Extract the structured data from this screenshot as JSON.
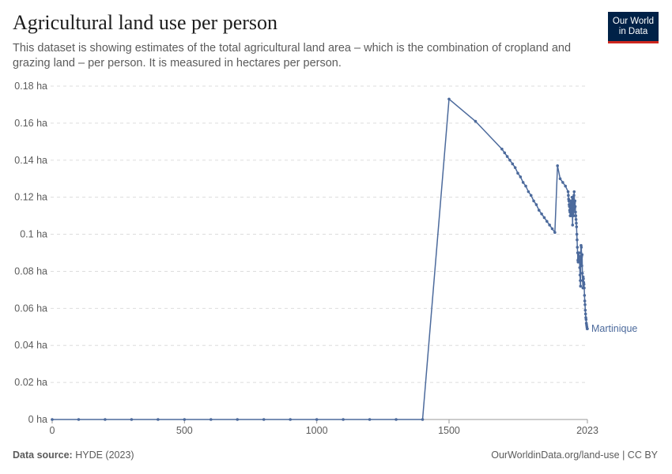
{
  "chart_data": {
    "type": "line",
    "title": "Agricultural land use per person",
    "subtitle": "This dataset is showing estimates of the total agricultural land area – which is the combination of cropland and grazing land – per person. It is measured in hectares per person.",
    "logo_lines": [
      "Our World",
      "in Data"
    ],
    "source_label": "Data source:",
    "source": "HYDE (2023)",
    "footer_right": "OurWorldinData.org/land-use | CC BY",
    "x": [
      0,
      100,
      200,
      300,
      400,
      500,
      600,
      700,
      800,
      900,
      1000,
      1100,
      1200,
      1300,
      1400,
      1500,
      1600,
      1700,
      1710,
      1720,
      1730,
      1740,
      1750,
      1760,
      1770,
      1780,
      1790,
      1800,
      1810,
      1820,
      1830,
      1840,
      1850,
      1860,
      1870,
      1880,
      1890,
      1900,
      1910,
      1920,
      1930,
      1940,
      1950,
      1951,
      1952,
      1953,
      1954,
      1955,
      1956,
      1957,
      1958,
      1959,
      1960,
      1961,
      1962,
      1963,
      1964,
      1965,
      1966,
      1967,
      1968,
      1969,
      1970,
      1971,
      1972,
      1973,
      1974,
      1975,
      1976,
      1977,
      1978,
      1979,
      1980,
      1981,
      1982,
      1983,
      1984,
      1985,
      1986,
      1987,
      1988,
      1989,
      1990,
      1991,
      1992,
      1993,
      1994,
      1995,
      1996,
      1997,
      1998,
      1999,
      2000,
      2001,
      2002,
      2003,
      2004,
      2005,
      2006,
      2007,
      2008,
      2009,
      2010,
      2011,
      2012,
      2013,
      2014,
      2015,
      2016,
      2017,
      2018,
      2019,
      2020,
      2021,
      2022,
      2023
    ],
    "series": [
      {
        "name": "Martinique",
        "color": "#4c6a9c",
        "values": [
          0,
          0,
          0,
          0,
          0,
          0,
          0,
          0,
          0,
          0,
          0,
          0,
          0,
          0,
          0,
          0.173,
          0.161,
          0.146,
          0.144,
          0.142,
          0.14,
          0.138,
          0.136,
          0.133,
          0.131,
          0.128,
          0.126,
          0.123,
          0.121,
          0.118,
          0.116,
          0.113,
          0.111,
          0.109,
          0.107,
          0.105,
          0.103,
          0.101,
          0.137,
          0.13,
          0.128,
          0.126,
          0.123,
          0.121,
          0.119,
          0.118,
          0.116,
          0.115,
          0.113,
          0.112,
          0.11,
          0.118,
          0.114,
          0.11,
          0.118,
          0.115,
          0.111,
          0.12,
          0.112,
          0.105,
          0.115,
          0.119,
          0.113,
          0.11,
          0.121,
          0.123,
          0.117,
          0.114,
          0.118,
          0.115,
          0.112,
          0.11,
          0.108,
          0.106,
          0.104,
          0.1,
          0.097,
          0.093,
          0.09,
          0.086,
          0.085,
          0.087,
          0.085,
          0.09,
          0.086,
          0.088,
          0.082,
          0.078,
          0.075,
          0.072,
          0.09,
          0.094,
          0.093,
          0.088,
          0.083,
          0.089,
          0.079,
          0.075,
          0.071,
          0.077,
          0.076,
          0.074,
          0.073,
          0.071,
          0.067,
          0.064,
          0.062,
          0.059,
          0.057,
          0.055,
          0.054,
          0.052,
          0.051,
          0.05,
          0.049,
          0.049
        ]
      }
    ],
    "xlim": [
      0,
      2023
    ],
    "xticks": [
      0,
      500,
      1000,
      1500,
      2023
    ],
    "ylim": [
      0,
      0.18
    ],
    "yticks": [
      {
        "value": 0,
        "label": "0 ha"
      },
      {
        "value": 0.02,
        "label": "0.02 ha"
      },
      {
        "value": 0.04,
        "label": "0.04 ha"
      },
      {
        "value": 0.06,
        "label": "0.06 ha"
      },
      {
        "value": 0.08,
        "label": "0.08 ha"
      },
      {
        "value": 0.1,
        "label": "0.1 ha"
      },
      {
        "value": 0.12,
        "label": "0.12 ha"
      },
      {
        "value": 0.14,
        "label": "0.14 ha"
      },
      {
        "value": 0.16,
        "label": "0.16 ha"
      },
      {
        "value": 0.18,
        "label": "0.18 ha"
      }
    ],
    "grid": true
  }
}
